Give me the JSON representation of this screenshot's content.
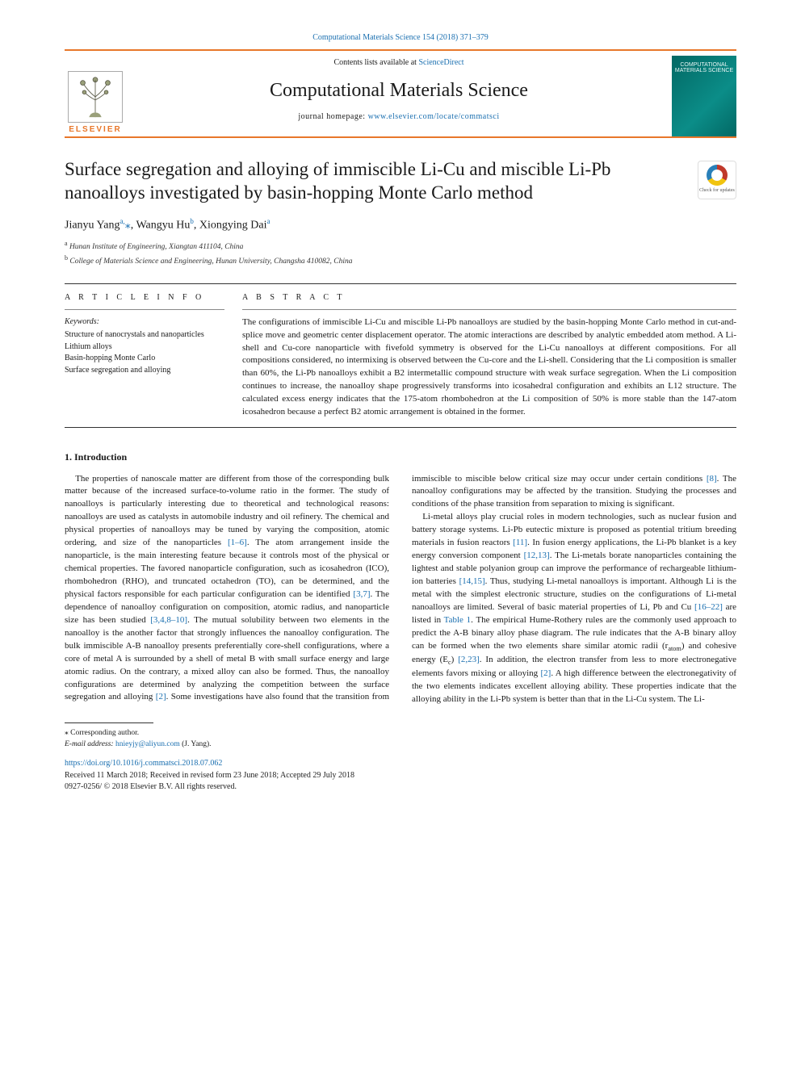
{
  "top_link": {
    "journal": "Computational Materials Science",
    "citation": "154 (2018) 371–379",
    "url_text": "Computational Materials Science 154 (2018) 371–379"
  },
  "header": {
    "contents_prefix": "Contents lists available at ",
    "contents_link": "ScienceDirect",
    "journal_title": "Computational Materials Science",
    "homepage_prefix": "journal homepage: ",
    "homepage_url": "www.elsevier.com/locate/commatsci",
    "elsevier_word": "ELSEVIER",
    "cover_text": "COMPUTATIONAL\nMATERIALS\nSCIENCE"
  },
  "check_updates_label": "Check for updates",
  "article": {
    "title": "Surface segregation and alloying of immiscible Li-Cu and miscible Li-Pb nanoalloys investigated by basin-hopping Monte Carlo method",
    "authors_html": "Jianyu Yang<sup>a,</sup><span class=\"star\">⁎</span>, Wangyu Hu<sup>b</sup>, Xiongying Dai<sup>a</sup>",
    "affiliations": [
      {
        "marker": "a",
        "text": "Hunan Institute of Engineering, Xiangtan 411104, China"
      },
      {
        "marker": "b",
        "text": "College of Materials Science and Engineering, Hunan University, Changsha 410082, China"
      }
    ]
  },
  "article_info": {
    "heading": "A R T I C L E  I N F O",
    "keywords_label": "Keywords:",
    "keywords": [
      "Structure of nanocrystals and nanoparticles",
      "Lithium alloys",
      "Basin-hopping Monte Carlo",
      "Surface segregation and alloying"
    ]
  },
  "abstract": {
    "heading": "A B S T R A C T",
    "text": "The configurations of immiscible Li-Cu and miscible Li-Pb nanoalloys are studied by the basin-hopping Monte Carlo method in cut-and-splice move and geometric center displacement operator. The atomic interactions are described by analytic embedded atom method. A Li-shell and Cu-core nanoparticle with fivefold symmetry is observed for the Li-Cu nanoalloys at different compositions. For all compositions considered, no intermixing is observed between the Cu-core and the Li-shell. Considering that the Li composition is smaller than 60%, the Li-Pb nanoalloys exhibit a B2 intermetallic compound structure with weak surface segregation. When the Li composition continues to increase, the nanoalloy shape progressively transforms into icosahedral configuration and exhibits an L12 structure. The calculated excess energy indicates that the 175-atom rhombohedron at the Li composition of 50% is more stable than the 147-atom icosahedron because a perfect B2 atomic arrangement is obtained in the former."
  },
  "body": {
    "section1_heading": "1. Introduction",
    "p1": "The properties of nanoscale matter are different from those of the corresponding bulk matter because of the increased surface-to-volume ratio in the former. The study of nanoalloys is particularly interesting due to theoretical and technological reasons: nanoalloys are used as catalysts in automobile industry and oil refinery. The chemical and physical properties of nanoalloys may be tuned by varying the composition, atomic ordering, and size of the nanoparticles ",
    "ref1": "[1–6]",
    "p1b": ". The atom arrangement inside the nanoparticle, is the main interesting feature because it controls most of the physical or chemical properties. The favored nanoparticle configuration, such as icosahedron (ICO), rhombohedron (RHO), and truncated octahedron (TO), can be determined, and the physical factors responsible for each particular configuration can be identified ",
    "ref2": "[3,7]",
    "p1c": ". The dependence of nanoalloy configuration on composition, atomic radius, and nanoparticle size has been studied ",
    "ref3": "[3,4,8–10]",
    "p1d": ". The mutual solubility between two elements in the nanoalloy is the another factor that strongly influences the nanoalloy configuration. The bulk immiscible A-B nanoalloy presents preferentially core-shell configurations, where a core of metal A is surrounded by a shell of metal B with small surface energy and large atomic radius. On the contrary, a mixed alloy can also be formed. Thus, the nanoalloy configurations are determined by analyzing the competition between the surface segregation and alloying ",
    "ref4": "[2]",
    "p1e": ". Some investigations have also found that the transition from immiscible to miscible below critical size may occur under certain conditions ",
    "ref5": "[8]",
    "p1f": ". The nanoalloy configurations may be affected by the transition. Studying the processes and conditions of the phase transition from separation to mixing is significant.",
    "p2a": "Li-metal alloys play crucial roles in modern technologies, such as nuclear fusion and battery storage systems. Li-Pb eutectic mixture is proposed as potential tritium breeding materials in fusion reactors ",
    "ref6": "[11]",
    "p2b": ". In fusion energy applications, the Li-Pb blanket is a key energy conversion component ",
    "ref7": "[12,13]",
    "p2c": ". The Li-metals borate nanoparticles containing the lightest and stable polyanion group can improve the performance of rechargeable lithium-ion batteries ",
    "ref8": "[14,15]",
    "p2d": ". Thus, studying Li-metal nanoalloys is important. Although Li is the metal with the simplest electronic structure, studies on the configurations of Li-metal nanoalloys are limited. Several of basic material properties of Li, Pb and Cu ",
    "ref9": "[16–22]",
    "p2e": " are listed in ",
    "ref10": "Table 1",
    "p2f": ". The empirical Hume-Rothery rules are the commonly used approach to predict the A-B binary alloy phase diagram. The rule indicates that the A-B binary alloy can be formed when the two elements share similar atomic radii (r",
    "p2f_sub": "atom",
    "p2g": ") and cohesive energy (E",
    "p2g_sub": "c",
    "p2h": ") ",
    "ref11": "[2,23]",
    "p2i": ". In addition, the electron transfer from less to more electronegative elements favors mixing or alloying ",
    "ref12": "[2]",
    "p2j": ". A high difference between the electronegativity of the two elements indicates excellent alloying ability. These properties indicate that the alloying ability in the Li-Pb system is better than that in the Li-Cu system. The Li-"
  },
  "footnote": {
    "corr": "⁎ Corresponding author.",
    "email_label": "E-mail address: ",
    "email": "hnieyjy@aliyun.com",
    "email_suffix": " (J. Yang)."
  },
  "footer": {
    "doi": "https://doi.org/10.1016/j.commatsci.2018.07.062",
    "received": "Received 11 March 2018; Received in revised form 23 June 2018; Accepted 29 July 2018",
    "copyright": "0927-0256/ © 2018 Elsevier B.V. All rights reserved."
  },
  "colors": {
    "orange": "#e8772a",
    "link": "#1a6fb0",
    "cover_bg": "#026864"
  }
}
